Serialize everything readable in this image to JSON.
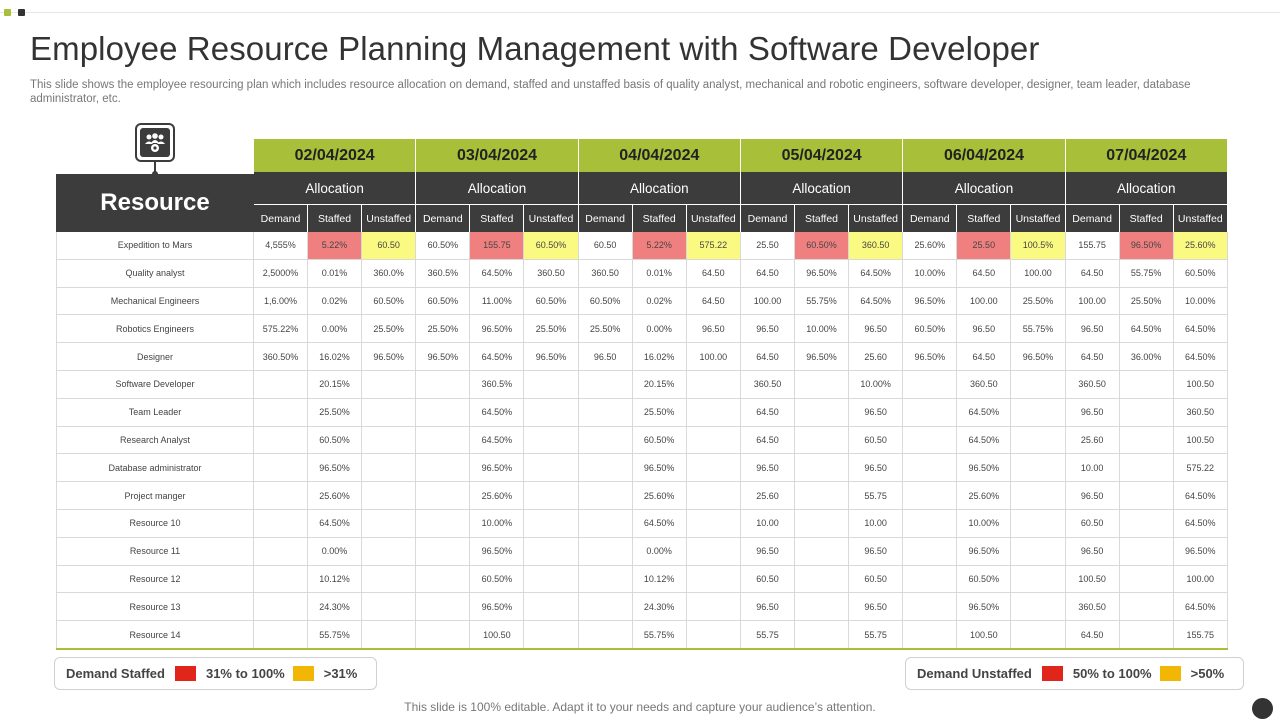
{
  "title": "Employee Resource Planning Management with Software Developer",
  "subtitle": "This slide shows the employee resourcing plan which includes resource allocation on demand, staffed and unstaffed basis of quality analyst, mechanical and robotic engineers, software developer, designer, team leader, database administrator, etc.",
  "resource_header": "Resource",
  "resource_icon": "team-gear-icon",
  "dates": [
    "02/04/2024",
    "03/04/2024",
    "04/04/2024",
    "05/04/2024",
    "06/04/2024",
    "07/04/2024"
  ],
  "allocation_label": "Allocation",
  "subheaders": [
    "Demand",
    "Staffed",
    "Unstaffed"
  ],
  "rows": [
    {
      "name": "Expedition to Mars",
      "values": [
        "4,555%",
        "5.22%",
        "60.50",
        "60.50%",
        "155.75",
        "60.50%",
        "60.50",
        "5.22%",
        "575.22",
        "25.50",
        "60.50%",
        "360.50",
        "25.60%",
        "25.50",
        "100.5%",
        "155.75",
        "96.50%",
        "25.60%"
      ]
    },
    {
      "name": "Quality analyst",
      "values": [
        "2,5000%",
        "0.01%",
        "360.0%",
        "360.5%",
        "64.50%",
        "360.50",
        "360.50",
        "0.01%",
        "64.50",
        "64.50",
        "96.50%",
        "64.50%",
        "10.00%",
        "64.50",
        "100.00",
        "64.50",
        "55.75%",
        "60.50%"
      ]
    },
    {
      "name": "Mechanical Engineers",
      "values": [
        "1,6.00%",
        "0.02%",
        "60.50%",
        "60.50%",
        "11.00%",
        "60.50%",
        "60.50%",
        "0.02%",
        "64.50",
        "100.00",
        "55.75%",
        "64.50%",
        "96.50%",
        "100.00",
        "25.50%",
        "100.00",
        "25.50%",
        "10.00%"
      ]
    },
    {
      "name": "Robotics Engineers",
      "values": [
        "575.22%",
        "0.00%",
        "25.50%",
        "25.50%",
        "96.50%",
        "25.50%",
        "25.50%",
        "0.00%",
        "96.50",
        "96.50",
        "10.00%",
        "96.50",
        "60.50%",
        "96.50",
        "55.75%",
        "96.50",
        "64.50%",
        "64.50%"
      ]
    },
    {
      "name": "Designer",
      "values": [
        "360.50%",
        "16.02%",
        "96.50%",
        "96.50%",
        "64.50%",
        "96.50%",
        "96.50",
        "16.02%",
        "100.00",
        "64.50",
        "96.50%",
        "25.60",
        "96.50%",
        "64.50",
        "96.50%",
        "64.50",
        "36.00%",
        "64.50%"
      ]
    },
    {
      "name": "Software Developer",
      "values": [
        "",
        "20.15%",
        "",
        "",
        "360.5%",
        "",
        "",
        "20.15%",
        "",
        "360.50",
        "",
        "10.00%",
        "",
        "360.50",
        "",
        "360.50",
        "",
        "100.50"
      ]
    },
    {
      "name": "Team Leader",
      "values": [
        "",
        "25.50%",
        "",
        "",
        "64.50%",
        "",
        "",
        "25.50%",
        "",
        "64.50",
        "",
        "96.50",
        "",
        "64.50%",
        "",
        "96.50",
        "",
        "360.50"
      ]
    },
    {
      "name": "Research Analyst",
      "values": [
        "",
        "60.50%",
        "",
        "",
        "64.50%",
        "",
        "",
        "60.50%",
        "",
        "64.50",
        "",
        "60.50",
        "",
        "64.50%",
        "",
        "25.60",
        "",
        "100.50"
      ]
    },
    {
      "name": "Database administrator",
      "values": [
        "",
        "96.50%",
        "",
        "",
        "96.50%",
        "",
        "",
        "96.50%",
        "",
        "96.50",
        "",
        "96.50",
        "",
        "96.50%",
        "",
        "10.00",
        "",
        "575.22"
      ]
    },
    {
      "name": "Project manger",
      "values": [
        "",
        "25.60%",
        "",
        "",
        "25.60%",
        "",
        "",
        "25.60%",
        "",
        "25.60",
        "",
        "55.75",
        "",
        "25.60%",
        "",
        "96.50",
        "",
        "64.50%"
      ]
    },
    {
      "name": "Resource 10",
      "values": [
        "",
        "64.50%",
        "",
        "",
        "10.00%",
        "",
        "",
        "64.50%",
        "",
        "10.00",
        "",
        "10.00",
        "",
        "10.00%",
        "",
        "60.50",
        "",
        "64.50%"
      ]
    },
    {
      "name": "Resource 11",
      "values": [
        "",
        "0.00%",
        "",
        "",
        "96.50%",
        "",
        "",
        "0.00%",
        "",
        "96.50",
        "",
        "96.50",
        "",
        "96.50%",
        "",
        "96.50",
        "",
        "96.50%"
      ]
    },
    {
      "name": "Resource 12",
      "values": [
        "",
        "10.12%",
        "",
        "",
        "60.50%",
        "",
        "",
        "10.12%",
        "",
        "60.50",
        "",
        "60.50",
        "",
        "60.50%",
        "",
        "100.50",
        "",
        "100.00"
      ]
    },
    {
      "name": "Resource 13",
      "values": [
        "",
        "24.30%",
        "",
        "",
        "96.50%",
        "",
        "",
        "24.30%",
        "",
        "96.50",
        "",
        "96.50",
        "",
        "96.50%",
        "",
        "360.50",
        "",
        "64.50%"
      ]
    },
    {
      "name": "Resource 14",
      "values": [
        "",
        "55.75%",
        "",
        "",
        "100.50",
        "",
        "",
        "55.75%",
        "",
        "55.75",
        "",
        "55.75",
        "",
        "100.50",
        "",
        "64.50",
        "",
        "155.75"
      ]
    }
  ],
  "highlight_colors": {
    "staffed_first_row": "#f08080",
    "unstaffed_first_row": "#fafa82"
  },
  "legend_left": {
    "label": "Demand Staffed",
    "red_label": "31% to 100%",
    "yellow_label": ">31%"
  },
  "legend_right": {
    "label": "Demand Unstaffed",
    "red_label": "50% to 100%",
    "yellow_label": ">50%"
  },
  "colors": {
    "accent_green": "#a8bf3a",
    "header_dark": "#3c3c3c",
    "legend_red": "#e0251b",
    "legend_yellow": "#f2b705"
  },
  "footer": "This slide is 100% editable. Adapt it to your needs and capture your audience’s attention."
}
